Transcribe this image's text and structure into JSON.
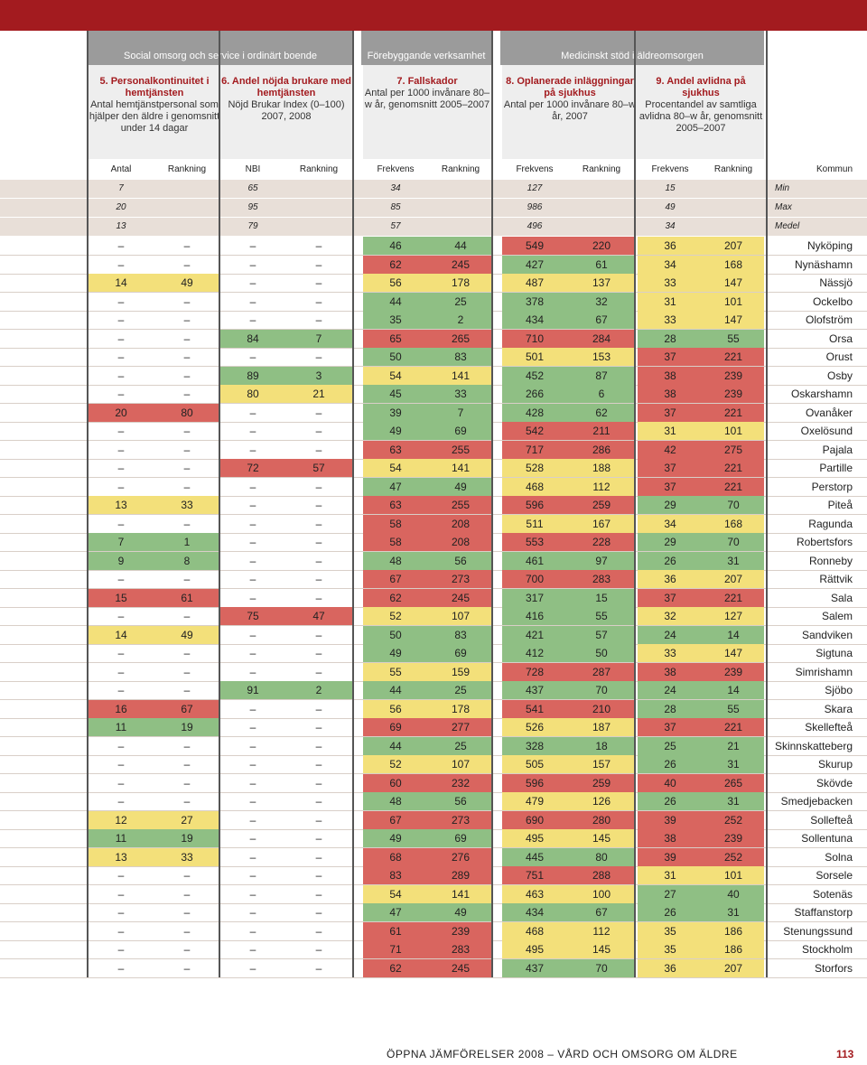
{
  "header": {
    "group1": "Social omsorg och service i ordinärt boende",
    "group2": "Förebyggande verksamhet",
    "group3": "Medicinskt stöd i äldreomsorgen"
  },
  "indicators": [
    {
      "title": "5. Personalkontinuitet i hemtjänsten",
      "desc": "Antal hemtjänstpersonal som hjälper den äldre i genomsnitt under 14 dagar"
    },
    {
      "title": "6. Andel nöjda brukare med hemtjänsten",
      "desc": "Nöjd Brukar Index (0–100) 2007, 2008"
    },
    {
      "title": "7. Fallskador",
      "desc": "Antal per 1000 invånare 80–w år, genomsnitt 2005–2007"
    },
    {
      "title": "8. Oplanerade inläggningar på sjukhus",
      "desc": "Antal per 1000 invånare 80–w år, 2007"
    },
    {
      "title": "9. Andel avlidna på sjukhus",
      "desc": "Procentandel av samtliga avlidna 80–w år, genomsnitt 2005–2007"
    }
  ],
  "columns": [
    "Antal",
    "Rankning",
    "NBI",
    "Rankning",
    "Frekvens",
    "Rankning",
    "Frekvens",
    "Rankning",
    "Frekvens",
    "Rankning",
    "Kommun"
  ],
  "stats": [
    {
      "label": "Min",
      "v": [
        "7",
        "",
        "65",
        "",
        "34",
        "",
        "127",
        "",
        "15",
        ""
      ]
    },
    {
      "label": "Max",
      "v": [
        "20",
        "",
        "95",
        "",
        "85",
        "",
        "986",
        "",
        "49",
        ""
      ]
    },
    {
      "label": "Medel",
      "v": [
        "13",
        "",
        "79",
        "",
        "57",
        "",
        "496",
        "",
        "34",
        ""
      ]
    }
  ],
  "rows": [
    {
      "k": "Nyköping",
      "v": [
        "–",
        "–",
        "–",
        "–",
        "46",
        "44",
        "549",
        "220",
        "36",
        "207"
      ],
      "c": [
        "",
        "",
        "",
        "",
        "g",
        "g",
        "r",
        "r",
        "y",
        "y"
      ]
    },
    {
      "k": "Nynäshamn",
      "v": [
        "–",
        "–",
        "–",
        "–",
        "62",
        "245",
        "427",
        "61",
        "34",
        "168"
      ],
      "c": [
        "",
        "",
        "",
        "",
        "r",
        "r",
        "g",
        "g",
        "y",
        "y"
      ]
    },
    {
      "k": "Nässjö",
      "v": [
        "14",
        "49",
        "–",
        "–",
        "56",
        "178",
        "487",
        "137",
        "33",
        "147"
      ],
      "c": [
        "y",
        "y",
        "",
        "",
        "y",
        "y",
        "y",
        "y",
        "y",
        "y"
      ]
    },
    {
      "k": "Ockelbo",
      "v": [
        "–",
        "–",
        "–",
        "–",
        "44",
        "25",
        "378",
        "32",
        "31",
        "101"
      ],
      "c": [
        "",
        "",
        "",
        "",
        "g",
        "g",
        "g",
        "g",
        "y",
        "y"
      ]
    },
    {
      "k": "Olofström",
      "v": [
        "–",
        "–",
        "–",
        "–",
        "35",
        "2",
        "434",
        "67",
        "33",
        "147"
      ],
      "c": [
        "",
        "",
        "",
        "",
        "g",
        "g",
        "g",
        "g",
        "y",
        "y"
      ]
    },
    {
      "k": "Orsa",
      "v": [
        "–",
        "–",
        "84",
        "7",
        "65",
        "265",
        "710",
        "284",
        "28",
        "55"
      ],
      "c": [
        "",
        "",
        "g",
        "g",
        "r",
        "r",
        "r",
        "r",
        "g",
        "g"
      ]
    },
    {
      "k": "Orust",
      "v": [
        "–",
        "–",
        "–",
        "–",
        "50",
        "83",
        "501",
        "153",
        "37",
        "221"
      ],
      "c": [
        "",
        "",
        "",
        "",
        "g",
        "g",
        "y",
        "y",
        "r",
        "r"
      ]
    },
    {
      "k": "Osby",
      "v": [
        "–",
        "–",
        "89",
        "3",
        "54",
        "141",
        "452",
        "87",
        "38",
        "239"
      ],
      "c": [
        "",
        "",
        "g",
        "g",
        "y",
        "y",
        "g",
        "g",
        "r",
        "r"
      ]
    },
    {
      "k": "Oskarshamn",
      "v": [
        "–",
        "–",
        "80",
        "21",
        "45",
        "33",
        "266",
        "6",
        "38",
        "239"
      ],
      "c": [
        "",
        "",
        "y",
        "y",
        "g",
        "g",
        "g",
        "g",
        "r",
        "r"
      ]
    },
    {
      "k": "Ovanåker",
      "v": [
        "20",
        "80",
        "–",
        "–",
        "39",
        "7",
        "428",
        "62",
        "37",
        "221"
      ],
      "c": [
        "r",
        "r",
        "",
        "",
        "g",
        "g",
        "g",
        "g",
        "r",
        "r"
      ]
    },
    {
      "k": "Oxelösund",
      "v": [
        "–",
        "–",
        "–",
        "–",
        "49",
        "69",
        "542",
        "211",
        "31",
        "101"
      ],
      "c": [
        "",
        "",
        "",
        "",
        "g",
        "g",
        "r",
        "r",
        "y",
        "y"
      ]
    },
    {
      "k": "Pajala",
      "v": [
        "–",
        "–",
        "–",
        "–",
        "63",
        "255",
        "717",
        "286",
        "42",
        "275"
      ],
      "c": [
        "",
        "",
        "",
        "",
        "r",
        "r",
        "r",
        "r",
        "r",
        "r"
      ]
    },
    {
      "k": "Partille",
      "v": [
        "–",
        "–",
        "72",
        "57",
        "54",
        "141",
        "528",
        "188",
        "37",
        "221"
      ],
      "c": [
        "",
        "",
        "r",
        "r",
        "y",
        "y",
        "y",
        "y",
        "r",
        "r"
      ]
    },
    {
      "k": "Perstorp",
      "v": [
        "–",
        "–",
        "–",
        "–",
        "47",
        "49",
        "468",
        "112",
        "37",
        "221"
      ],
      "c": [
        "",
        "",
        "",
        "",
        "g",
        "g",
        "y",
        "y",
        "r",
        "r"
      ]
    },
    {
      "k": "Piteå",
      "v": [
        "13",
        "33",
        "–",
        "–",
        "63",
        "255",
        "596",
        "259",
        "29",
        "70"
      ],
      "c": [
        "y",
        "y",
        "",
        "",
        "r",
        "r",
        "r",
        "r",
        "g",
        "g"
      ]
    },
    {
      "k": "Ragunda",
      "v": [
        "–",
        "–",
        "–",
        "–",
        "58",
        "208",
        "511",
        "167",
        "34",
        "168"
      ],
      "c": [
        "",
        "",
        "",
        "",
        "r",
        "r",
        "y",
        "y",
        "y",
        "y"
      ]
    },
    {
      "k": "Robertsfors",
      "v": [
        "7",
        "1",
        "–",
        "–",
        "58",
        "208",
        "553",
        "228",
        "29",
        "70"
      ],
      "c": [
        "g",
        "g",
        "",
        "",
        "r",
        "r",
        "r",
        "r",
        "g",
        "g"
      ]
    },
    {
      "k": "Ronneby",
      "v": [
        "9",
        "8",
        "–",
        "–",
        "48",
        "56",
        "461",
        "97",
        "26",
        "31"
      ],
      "c": [
        "g",
        "g",
        "",
        "",
        "g",
        "g",
        "g",
        "g",
        "g",
        "g"
      ]
    },
    {
      "k": "Rättvik",
      "v": [
        "–",
        "–",
        "–",
        "–",
        "67",
        "273",
        "700",
        "283",
        "36",
        "207"
      ],
      "c": [
        "",
        "",
        "",
        "",
        "r",
        "r",
        "r",
        "r",
        "y",
        "y"
      ]
    },
    {
      "k": "Sala",
      "v": [
        "15",
        "61",
        "–",
        "–",
        "62",
        "245",
        "317",
        "15",
        "37",
        "221"
      ],
      "c": [
        "r",
        "r",
        "",
        "",
        "r",
        "r",
        "g",
        "g",
        "r",
        "r"
      ]
    },
    {
      "k": "Salem",
      "v": [
        "–",
        "–",
        "75",
        "47",
        "52",
        "107",
        "416",
        "55",
        "32",
        "127"
      ],
      "c": [
        "",
        "",
        "r",
        "r",
        "y",
        "y",
        "g",
        "g",
        "y",
        "y"
      ]
    },
    {
      "k": "Sandviken",
      "v": [
        "14",
        "49",
        "–",
        "–",
        "50",
        "83",
        "421",
        "57",
        "24",
        "14"
      ],
      "c": [
        "y",
        "y",
        "",
        "",
        "g",
        "g",
        "g",
        "g",
        "g",
        "g"
      ]
    },
    {
      "k": "Sigtuna",
      "v": [
        "–",
        "–",
        "–",
        "–",
        "49",
        "69",
        "412",
        "50",
        "33",
        "147"
      ],
      "c": [
        "",
        "",
        "",
        "",
        "g",
        "g",
        "g",
        "g",
        "y",
        "y"
      ]
    },
    {
      "k": "Simrishamn",
      "v": [
        "–",
        "–",
        "–",
        "–",
        "55",
        "159",
        "728",
        "287",
        "38",
        "239"
      ],
      "c": [
        "",
        "",
        "",
        "",
        "y",
        "y",
        "r",
        "r",
        "r",
        "r"
      ]
    },
    {
      "k": "Sjöbo",
      "v": [
        "–",
        "–",
        "91",
        "2",
        "44",
        "25",
        "437",
        "70",
        "24",
        "14"
      ],
      "c": [
        "",
        "",
        "g",
        "g",
        "g",
        "g",
        "g",
        "g",
        "g",
        "g"
      ]
    },
    {
      "k": "Skara",
      "v": [
        "16",
        "67",
        "–",
        "–",
        "56",
        "178",
        "541",
        "210",
        "28",
        "55"
      ],
      "c": [
        "r",
        "r",
        "",
        "",
        "y",
        "y",
        "r",
        "r",
        "g",
        "g"
      ]
    },
    {
      "k": "Skellefteå",
      "v": [
        "11",
        "19",
        "–",
        "–",
        "69",
        "277",
        "526",
        "187",
        "37",
        "221"
      ],
      "c": [
        "g",
        "g",
        "",
        "",
        "r",
        "r",
        "y",
        "y",
        "r",
        "r"
      ]
    },
    {
      "k": "Skinnskatteberg",
      "v": [
        "–",
        "–",
        "–",
        "–",
        "44",
        "25",
        "328",
        "18",
        "25",
        "21"
      ],
      "c": [
        "",
        "",
        "",
        "",
        "g",
        "g",
        "g",
        "g",
        "g",
        "g"
      ]
    },
    {
      "k": "Skurup",
      "v": [
        "–",
        "–",
        "–",
        "–",
        "52",
        "107",
        "505",
        "157",
        "26",
        "31"
      ],
      "c": [
        "",
        "",
        "",
        "",
        "y",
        "y",
        "y",
        "y",
        "g",
        "g"
      ]
    },
    {
      "k": "Skövde",
      "v": [
        "–",
        "–",
        "–",
        "–",
        "60",
        "232",
        "596",
        "259",
        "40",
        "265"
      ],
      "c": [
        "",
        "",
        "",
        "",
        "r",
        "r",
        "r",
        "r",
        "r",
        "r"
      ]
    },
    {
      "k": "Smedjebacken",
      "v": [
        "–",
        "–",
        "–",
        "–",
        "48",
        "56",
        "479",
        "126",
        "26",
        "31"
      ],
      "c": [
        "",
        "",
        "",
        "",
        "g",
        "g",
        "y",
        "y",
        "g",
        "g"
      ]
    },
    {
      "k": "Sollefteå",
      "v": [
        "12",
        "27",
        "–",
        "–",
        "67",
        "273",
        "690",
        "280",
        "39",
        "252"
      ],
      "c": [
        "y",
        "y",
        "",
        "",
        "r",
        "r",
        "r",
        "r",
        "r",
        "r"
      ]
    },
    {
      "k": "Sollentuna",
      "v": [
        "11",
        "19",
        "–",
        "–",
        "49",
        "69",
        "495",
        "145",
        "38",
        "239"
      ],
      "c": [
        "g",
        "g",
        "",
        "",
        "g",
        "g",
        "y",
        "y",
        "r",
        "r"
      ]
    },
    {
      "k": "Solna",
      "v": [
        "13",
        "33",
        "–",
        "–",
        "68",
        "276",
        "445",
        "80",
        "39",
        "252"
      ],
      "c": [
        "y",
        "y",
        "",
        "",
        "r",
        "r",
        "g",
        "g",
        "r",
        "r"
      ]
    },
    {
      "k": "Sorsele",
      "v": [
        "–",
        "–",
        "–",
        "–",
        "83",
        "289",
        "751",
        "288",
        "31",
        "101"
      ],
      "c": [
        "",
        "",
        "",
        "",
        "r",
        "r",
        "r",
        "r",
        "y",
        "y"
      ]
    },
    {
      "k": "Sotenäs",
      "v": [
        "–",
        "–",
        "–",
        "–",
        "54",
        "141",
        "463",
        "100",
        "27",
        "40"
      ],
      "c": [
        "",
        "",
        "",
        "",
        "y",
        "y",
        "y",
        "y",
        "g",
        "g"
      ]
    },
    {
      "k": "Staffanstorp",
      "v": [
        "–",
        "–",
        "–",
        "–",
        "47",
        "49",
        "434",
        "67",
        "26",
        "31"
      ],
      "c": [
        "",
        "",
        "",
        "",
        "g",
        "g",
        "g",
        "g",
        "g",
        "g"
      ]
    },
    {
      "k": "Stenungssund",
      "v": [
        "–",
        "–",
        "–",
        "–",
        "61",
        "239",
        "468",
        "112",
        "35",
        "186"
      ],
      "c": [
        "",
        "",
        "",
        "",
        "r",
        "r",
        "y",
        "y",
        "y",
        "y"
      ]
    },
    {
      "k": "Stockholm",
      "v": [
        "–",
        "–",
        "–",
        "–",
        "71",
        "283",
        "495",
        "145",
        "35",
        "186"
      ],
      "c": [
        "",
        "",
        "",
        "",
        "r",
        "r",
        "y",
        "y",
        "y",
        "y"
      ]
    },
    {
      "k": "Storfors",
      "v": [
        "–",
        "–",
        "–",
        "–",
        "62",
        "245",
        "437",
        "70",
        "36",
        "207"
      ],
      "c": [
        "",
        "",
        "",
        "",
        "r",
        "r",
        "g",
        "g",
        "y",
        "y"
      ]
    }
  ],
  "footer": {
    "text": "ÖPPNA JÄMFÖRELSER 2008 – VÅRD OCH OMSORG OM ÄLDRE",
    "page": "113"
  }
}
